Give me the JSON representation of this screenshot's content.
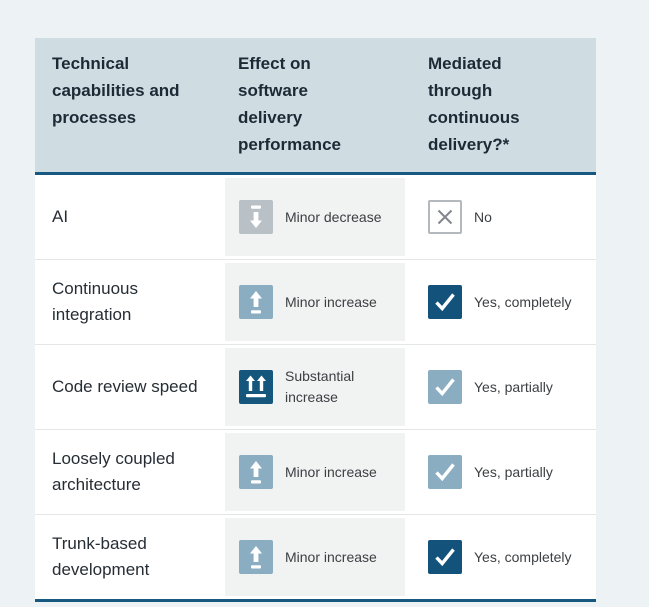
{
  "chart_data": {
    "type": "table",
    "columns": [
      "Technical capabilities and processes",
      "Effect on software delivery performance",
      "Mediated through continuous delivery?*"
    ],
    "rows": [
      {
        "capability": "AI",
        "effect": {
          "icon": "minor-decrease",
          "label": "Minor decrease"
        },
        "mediated": {
          "icon": "no",
          "label": "No"
        }
      },
      {
        "capability": "Continuous integration",
        "effect": {
          "icon": "minor-increase",
          "label": "Minor increase"
        },
        "mediated": {
          "icon": "yes-completely",
          "label": "Yes, completely"
        }
      },
      {
        "capability": "Code review speed",
        "effect": {
          "icon": "substantial-increase",
          "label": "Substantial increase"
        },
        "mediated": {
          "icon": "yes-partially",
          "label": "Yes, partially"
        }
      },
      {
        "capability": "Loosely coupled architecture",
        "effect": {
          "icon": "minor-increase",
          "label": "Minor increase"
        },
        "mediated": {
          "icon": "yes-partially",
          "label": "Yes, partially"
        }
      },
      {
        "capability": "Trunk-based development",
        "effect": {
          "icon": "minor-increase",
          "label": "Minor increase"
        },
        "mediated": {
          "icon": "yes-completely",
          "label": "Yes, completely"
        }
      }
    ]
  },
  "colors": {
    "page_bg": "#edf2f5",
    "header_bg": "#cfdde3",
    "accent_dark_blue": "#15567d",
    "accent_light_blue": "#8badc1",
    "neutral_gray": "#b9c0c6",
    "effect_column_bg": "#f1f2f2",
    "border_blue": "#16587f"
  }
}
